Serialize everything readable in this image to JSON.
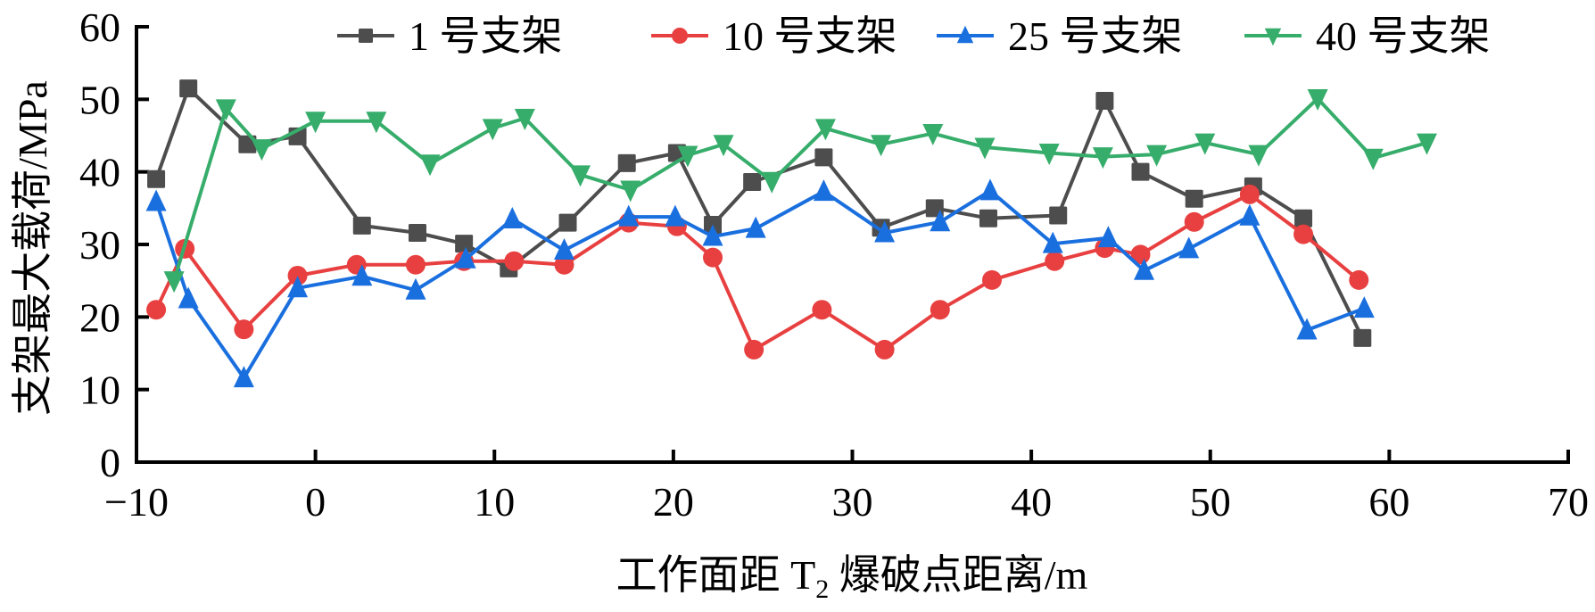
{
  "chart_data": {
    "type": "line",
    "title": "",
    "xlabel": "工作面距 T2 爆破点距离/m",
    "xlabel_parts": {
      "before": "工作面距 T",
      "sub": "2",
      "after": " 爆破点距离/m"
    },
    "ylabel": "支架最大载荷/MPa",
    "xlim": [
      -10,
      70
    ],
    "ylim": [
      0,
      60
    ],
    "xticks": [
      -10,
      0,
      10,
      20,
      30,
      40,
      50,
      60,
      70
    ],
    "xtick_labels": [
      "−10",
      "0",
      "10",
      "20",
      "30",
      "40",
      "50",
      "60",
      "70"
    ],
    "yticks": [
      0,
      10,
      20,
      30,
      40,
      50,
      60
    ],
    "ytick_labels": [
      "0",
      "10",
      "20",
      "30",
      "40",
      "50",
      "60"
    ],
    "grid": false,
    "legend_position": "top",
    "series": [
      {
        "name": "1 号支架",
        "color": "#4d4d4d",
        "marker": "square",
        "x": [
          -8.9,
          -7.1,
          -3.8,
          -1.0,
          2.6,
          5.7,
          8.3,
          10.8,
          14.1,
          17.4,
          20.2,
          22.2,
          24.4,
          28.4,
          31.6,
          34.6,
          37.6,
          41.5,
          44.1,
          46.1,
          49.1,
          52.4,
          55.2,
          58.5
        ],
        "y": [
          39.0,
          51.5,
          43.8,
          44.9,
          32.6,
          31.6,
          30.1,
          26.7,
          33.0,
          41.2,
          42.6,
          32.7,
          38.6,
          42.0,
          32.3,
          35.0,
          33.6,
          34.0,
          49.8,
          40.0,
          36.3,
          38.0,
          33.6,
          17.1
        ]
      },
      {
        "name": "10 号支架",
        "color": "#e84040",
        "marker": "circle",
        "x": [
          -8.9,
          -7.3,
          -4.0,
          -1.0,
          2.3,
          5.6,
          8.3,
          11.1,
          13.9,
          17.5,
          20.2,
          22.2,
          24.5,
          28.3,
          31.8,
          34.9,
          37.8,
          41.3,
          44.1,
          46.1,
          49.1,
          52.2,
          55.2,
          58.3
        ],
        "y": [
          21.0,
          29.4,
          18.3,
          25.7,
          27.2,
          27.2,
          27.7,
          27.7,
          27.2,
          33.0,
          32.5,
          28.2,
          15.5,
          21.0,
          15.5,
          21.0,
          25.1,
          27.7,
          29.5,
          28.6,
          33.1,
          36.9,
          31.4,
          25.1
        ]
      },
      {
        "name": "25 号支架",
        "color": "#1a6fdf",
        "marker": "triangle-up",
        "x": [
          -8.9,
          -7.1,
          -4.0,
          -1.0,
          2.6,
          5.6,
          8.4,
          11.0,
          13.9,
          17.5,
          20.1,
          22.2,
          24.6,
          28.4,
          31.8,
          34.9,
          37.7,
          41.2,
          44.3,
          46.3,
          48.8,
          52.2,
          55.4,
          58.6
        ],
        "y": [
          35.9,
          22.5,
          11.6,
          24.0,
          25.6,
          23.7,
          28.0,
          33.5,
          29.2,
          33.8,
          33.8,
          31.1,
          32.2,
          37.3,
          31.6,
          33.1,
          37.4,
          30.1,
          30.9,
          26.4,
          29.4,
          33.9,
          18.2,
          21.2
        ]
      },
      {
        "name": "40 号支架",
        "color": "#37ad6b",
        "marker": "triangle-down",
        "x": [
          -7.9,
          -5.0,
          -3.0,
          0.0,
          3.4,
          6.4,
          9.9,
          11.7,
          14.8,
          17.6,
          20.8,
          22.8,
          25.5,
          28.5,
          31.6,
          34.5,
          37.4,
          41.0,
          44.0,
          47.0,
          49.7,
          52.7,
          56.0,
          59.1,
          62.1
        ],
        "y": [
          25.0,
          48.7,
          43.2,
          47.0,
          47.0,
          41.1,
          46.0,
          47.4,
          39.6,
          37.5,
          42.3,
          43.8,
          38.7,
          46.0,
          43.8,
          45.3,
          43.4,
          42.6,
          42.1,
          42.4,
          44.0,
          42.4,
          50.1,
          41.9,
          44.0
        ]
      }
    ]
  }
}
